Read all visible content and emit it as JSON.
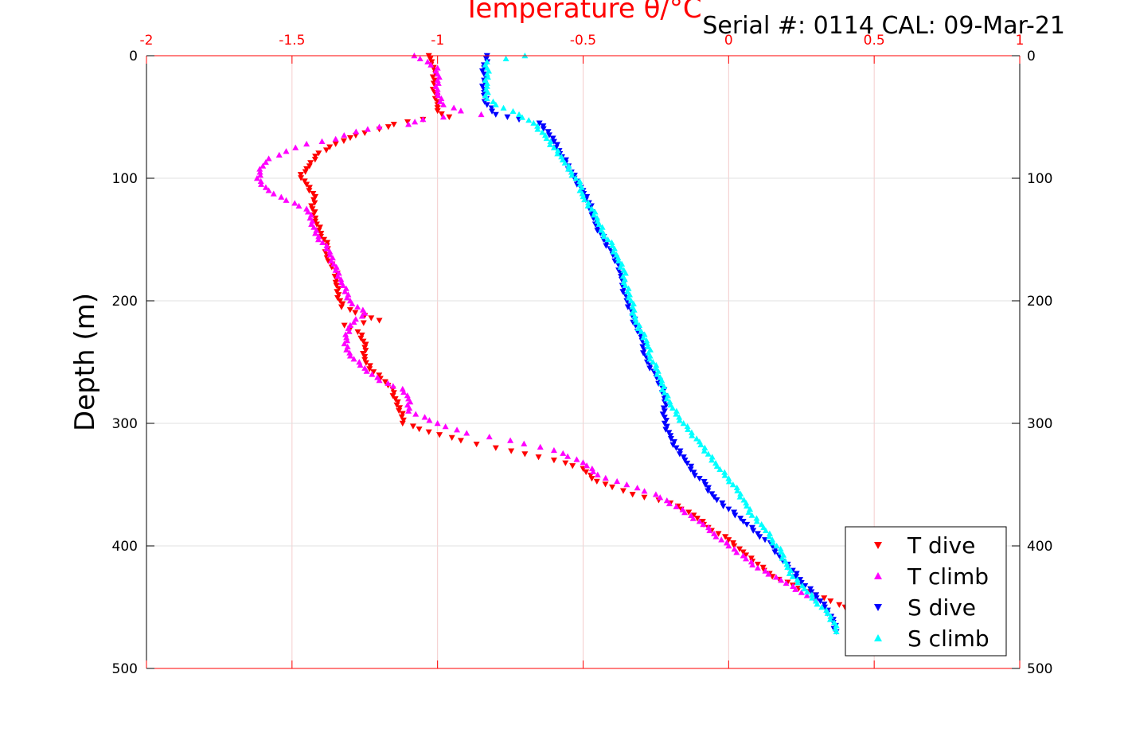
{
  "header": {
    "serial_text": "Serial #: 0114  CAL: 09-Mar-21"
  },
  "chart_data": {
    "type": "scatter",
    "title": "",
    "xlabel": "Temperature θ/°C",
    "ylabel": "Depth (m)",
    "xlim": [
      -2,
      1
    ],
    "ylim": [
      0,
      500
    ],
    "y_reversed": true,
    "x_axis_position": "top",
    "x_ticks": [
      "-2",
      "-1.5",
      "-1",
      "-0.5",
      "0",
      "0.5",
      "1"
    ],
    "x_tick_values": [
      -2,
      -1.5,
      -1,
      -0.5,
      0,
      0.5,
      1
    ],
    "y_ticks": [
      "0",
      "100",
      "200",
      "300",
      "400",
      "500"
    ],
    "y_tick_values": [
      0,
      100,
      200,
      300,
      400,
      500
    ],
    "grid": true,
    "legend_position": "bottom-right",
    "axis_colors": {
      "x": "#ff0000",
      "y": "#000000",
      "grid": "#e3e3e3"
    },
    "series": [
      {
        "name": "T dive",
        "color": "#ff0000",
        "marker": "triangle-down",
        "points": [
          [
            -1.03,
            0
          ],
          [
            -1.02,
            5
          ],
          [
            -1.01,
            12
          ],
          [
            -1.01,
            20
          ],
          [
            -1.01,
            30
          ],
          [
            -1.0,
            40
          ],
          [
            -1.0,
            45
          ],
          [
            -0.96,
            50
          ],
          [
            -1.05,
            52
          ],
          [
            -1.15,
            56
          ],
          [
            -1.2,
            60
          ],
          [
            -1.25,
            63
          ],
          [
            -1.3,
            67
          ],
          [
            -1.35,
            72
          ],
          [
            -1.42,
            82
          ],
          [
            -1.44,
            90
          ],
          [
            -1.47,
            97
          ],
          [
            -1.45,
            105
          ],
          [
            -1.42,
            115
          ],
          [
            -1.43,
            125
          ],
          [
            -1.42,
            135
          ],
          [
            -1.4,
            145
          ],
          [
            -1.38,
            155
          ],
          [
            -1.38,
            165
          ],
          [
            -1.35,
            175
          ],
          [
            -1.35,
            185
          ],
          [
            -1.34,
            195
          ],
          [
            -1.33,
            205
          ],
          [
            -1.25,
            212
          ],
          [
            -1.2,
            216
          ],
          [
            -1.32,
            220
          ],
          [
            -1.26,
            228
          ],
          [
            -1.25,
            238
          ],
          [
            -1.25,
            248
          ],
          [
            -1.22,
            258
          ],
          [
            -1.18,
            266
          ],
          [
            -1.15,
            275
          ],
          [
            -1.14,
            285
          ],
          [
            -1.12,
            292
          ],
          [
            -1.12,
            300
          ],
          [
            -1.03,
            307
          ],
          [
            -0.92,
            314
          ],
          [
            -0.8,
            320
          ],
          [
            -0.7,
            325
          ],
          [
            -0.6,
            330
          ],
          [
            -0.5,
            337
          ],
          [
            -0.47,
            345
          ],
          [
            -0.4,
            352
          ],
          [
            -0.33,
            358
          ],
          [
            -0.2,
            365
          ],
          [
            -0.12,
            375
          ],
          [
            -0.07,
            385
          ],
          [
            0.0,
            395
          ],
          [
            0.05,
            405
          ],
          [
            0.1,
            415
          ],
          [
            0.15,
            425
          ],
          [
            0.22,
            432
          ],
          [
            0.3,
            440
          ],
          [
            0.35,
            445
          ],
          [
            0.38,
            448
          ],
          [
            0.4,
            450
          ]
        ]
      },
      {
        "name": "T climb",
        "color": "#ff00ff",
        "marker": "triangle-up",
        "points": [
          [
            -1.08,
            0
          ],
          [
            -1.0,
            10
          ],
          [
            -1.0,
            20
          ],
          [
            -1.0,
            30
          ],
          [
            -0.98,
            40
          ],
          [
            -0.92,
            45
          ],
          [
            -0.85,
            48
          ],
          [
            -0.98,
            50
          ],
          [
            -1.05,
            52
          ],
          [
            -1.1,
            56
          ],
          [
            -1.2,
            58
          ],
          [
            -1.28,
            62
          ],
          [
            -1.35,
            68
          ],
          [
            -1.45,
            72
          ],
          [
            -1.52,
            78
          ],
          [
            -1.58,
            84
          ],
          [
            -1.6,
            90
          ],
          [
            -1.62,
            100
          ],
          [
            -1.58,
            110
          ],
          [
            -1.52,
            118
          ],
          [
            -1.45,
            125
          ],
          [
            -1.43,
            135
          ],
          [
            -1.42,
            145
          ],
          [
            -1.37,
            160
          ],
          [
            -1.35,
            175
          ],
          [
            -1.33,
            185
          ],
          [
            -1.3,
            200
          ],
          [
            -1.25,
            210
          ],
          [
            -1.3,
            220
          ],
          [
            -1.32,
            235
          ],
          [
            -1.3,
            245
          ],
          [
            -1.25,
            255
          ],
          [
            -1.2,
            265
          ],
          [
            -1.12,
            272
          ],
          [
            -1.1,
            280
          ],
          [
            -1.1,
            290
          ],
          [
            -1.0,
            300
          ],
          [
            -0.9,
            308
          ],
          [
            -0.75,
            314
          ],
          [
            -0.6,
            322
          ],
          [
            -0.5,
            332
          ],
          [
            -0.45,
            342
          ],
          [
            -0.35,
            350
          ],
          [
            -0.25,
            358
          ],
          [
            -0.18,
            368
          ],
          [
            -0.1,
            380
          ],
          [
            -0.05,
            390
          ],
          [
            0.0,
            400
          ],
          [
            0.05,
            408
          ],
          [
            0.1,
            418
          ],
          [
            0.18,
            428
          ],
          [
            0.25,
            438
          ],
          [
            0.3,
            443
          ]
        ]
      },
      {
        "name": "S dive",
        "color": "#0000ff",
        "marker": "triangle-down",
        "points": [
          [
            -0.83,
            0
          ],
          [
            -0.84,
            10
          ],
          [
            -0.84,
            20
          ],
          [
            -0.84,
            30
          ],
          [
            -0.83,
            40
          ],
          [
            -0.8,
            48
          ],
          [
            -0.72,
            52
          ],
          [
            -0.65,
            55
          ],
          [
            -0.62,
            62
          ],
          [
            -0.6,
            70
          ],
          [
            -0.58,
            80
          ],
          [
            -0.55,
            90
          ],
          [
            -0.53,
            100
          ],
          [
            -0.5,
            110
          ],
          [
            -0.48,
            120
          ],
          [
            -0.47,
            130
          ],
          [
            -0.45,
            140
          ],
          [
            -0.43,
            150
          ],
          [
            -0.4,
            160
          ],
          [
            -0.38,
            170
          ],
          [
            -0.37,
            180
          ],
          [
            -0.36,
            190
          ],
          [
            -0.35,
            200
          ],
          [
            -0.33,
            210
          ],
          [
            -0.32,
            220
          ],
          [
            -0.3,
            230
          ],
          [
            -0.29,
            240
          ],
          [
            -0.28,
            250
          ],
          [
            -0.25,
            260
          ],
          [
            -0.23,
            270
          ],
          [
            -0.22,
            280
          ],
          [
            -0.22,
            290
          ],
          [
            -0.22,
            300
          ],
          [
            -0.2,
            310
          ],
          [
            -0.18,
            320
          ],
          [
            -0.15,
            330
          ],
          [
            -0.12,
            340
          ],
          [
            -0.08,
            350
          ],
          [
            -0.05,
            360
          ],
          [
            0.0,
            370
          ],
          [
            0.05,
            380
          ],
          [
            0.1,
            390
          ],
          [
            0.15,
            400
          ],
          [
            0.18,
            410
          ],
          [
            0.22,
            420
          ],
          [
            0.25,
            430
          ],
          [
            0.3,
            440
          ],
          [
            0.33,
            450
          ],
          [
            0.36,
            460
          ],
          [
            0.37,
            470
          ]
        ]
      },
      {
        "name": "S climb",
        "color": "#00ffff",
        "marker": "triangle-up",
        "points": [
          [
            -0.7,
            0
          ],
          [
            -0.83,
            5
          ],
          [
            -0.83,
            15
          ],
          [
            -0.83,
            25
          ],
          [
            -0.83,
            35
          ],
          [
            -0.8,
            40
          ],
          [
            -0.72,
            48
          ],
          [
            -0.67,
            55
          ],
          [
            -0.63,
            65
          ],
          [
            -0.6,
            75
          ],
          [
            -0.57,
            85
          ],
          [
            -0.54,
            95
          ],
          [
            -0.51,
            105
          ],
          [
            -0.5,
            115
          ],
          [
            -0.47,
            125
          ],
          [
            -0.45,
            135
          ],
          [
            -0.43,
            145
          ],
          [
            -0.4,
            155
          ],
          [
            -0.38,
            165
          ],
          [
            -0.36,
            175
          ],
          [
            -0.36,
            185
          ],
          [
            -0.34,
            195
          ],
          [
            -0.33,
            205
          ],
          [
            -0.32,
            215
          ],
          [
            -0.3,
            225
          ],
          [
            -0.28,
            235
          ],
          [
            -0.27,
            245
          ],
          [
            -0.25,
            255
          ],
          [
            -0.23,
            265
          ],
          [
            -0.22,
            275
          ],
          [
            -0.2,
            285
          ],
          [
            -0.17,
            295
          ],
          [
            -0.14,
            305
          ],
          [
            -0.1,
            315
          ],
          [
            -0.07,
            325
          ],
          [
            -0.04,
            335
          ],
          [
            0.0,
            345
          ],
          [
            0.03,
            355
          ],
          [
            0.06,
            365
          ],
          [
            0.08,
            375
          ],
          [
            0.12,
            385
          ],
          [
            0.15,
            395
          ],
          [
            0.18,
            405
          ],
          [
            0.2,
            415
          ],
          [
            0.22,
            425
          ],
          [
            0.26,
            435
          ],
          [
            0.3,
            445
          ],
          [
            0.34,
            455
          ],
          [
            0.37,
            465
          ],
          [
            0.37,
            470
          ]
        ]
      }
    ]
  }
}
